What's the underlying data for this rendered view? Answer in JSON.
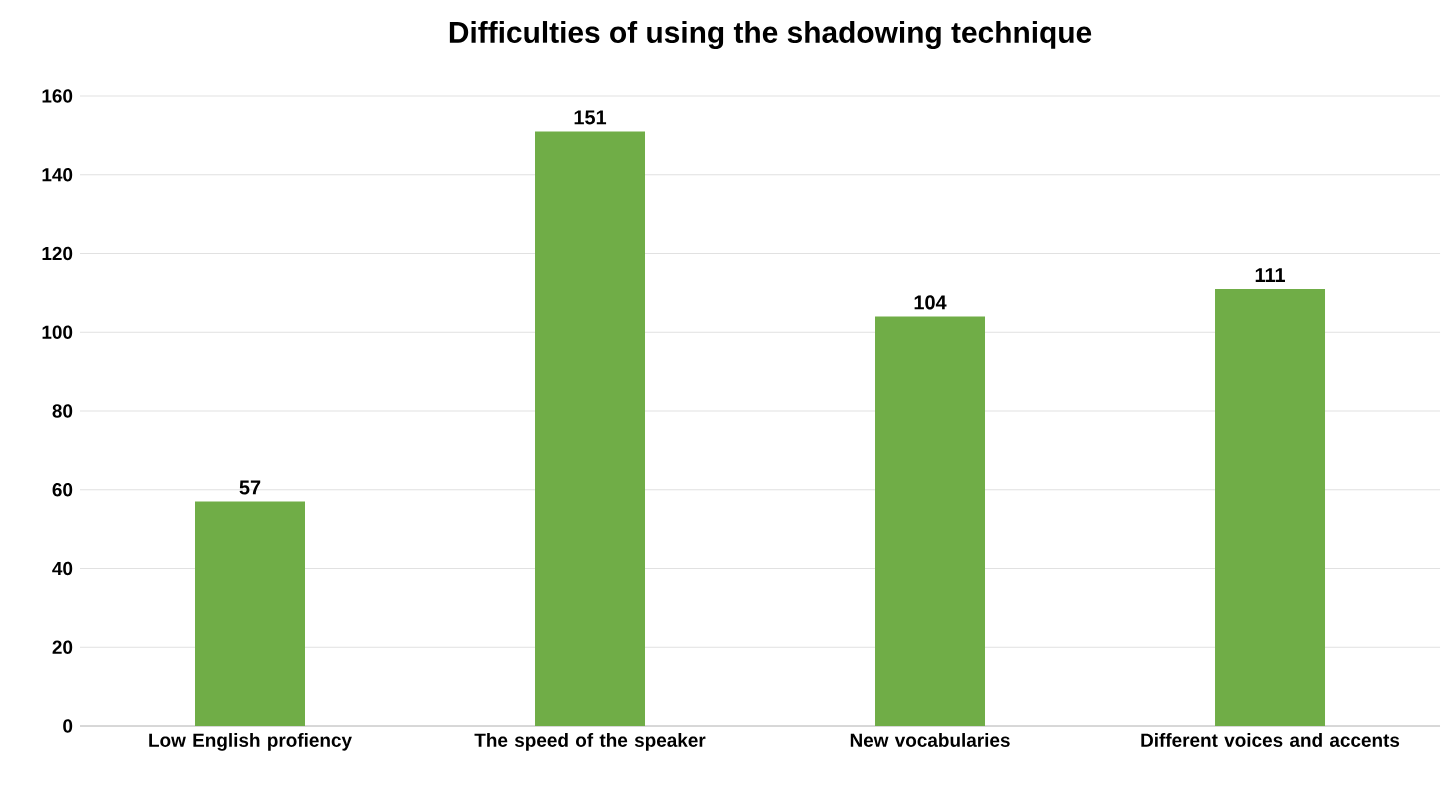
{
  "chart_data": {
    "type": "bar",
    "title": "Difficulties of using the shadowing technique",
    "categories": [
      "Low English profiency",
      "The speed of the speaker",
      "New vocabularies",
      "Different voices and accents"
    ],
    "values": [
      57,
      151,
      104,
      111
    ],
    "color": "#70ad47",
    "ylim": [
      0,
      160
    ],
    "yticks": [
      0,
      20,
      40,
      60,
      80,
      100,
      120,
      140,
      160
    ],
    "grid": "y",
    "data_labels": true
  }
}
